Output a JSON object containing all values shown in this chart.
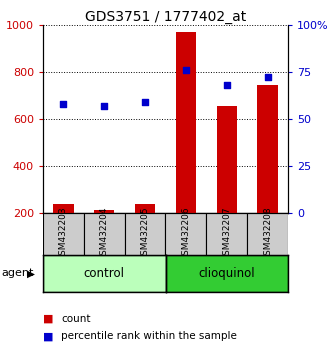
{
  "title": "GDS3751 / 1777402_at",
  "samples": [
    "GSM432203",
    "GSM432204",
    "GSM432205",
    "GSM432206",
    "GSM432207",
    "GSM432208"
  ],
  "groups": [
    "control",
    "control",
    "control",
    "clioquinol",
    "clioquinol",
    "clioquinol"
  ],
  "count_values": [
    240,
    215,
    240,
    970,
    655,
    745
  ],
  "percentile_values": [
    58,
    57,
    59,
    76,
    68,
    72
  ],
  "left_ylim": [
    200,
    1000
  ],
  "right_ylim": [
    0,
    100
  ],
  "left_yticks": [
    200,
    400,
    600,
    800,
    1000
  ],
  "right_yticks": [
    0,
    25,
    50,
    75,
    100
  ],
  "right_yticklabels": [
    "0",
    "25",
    "50",
    "75",
    "100%"
  ],
  "bar_color": "#cc0000",
  "dot_color": "#0000cc",
  "control_color": "#bbffbb",
  "clioquinol_color": "#33cc33",
  "sample_box_color": "#cccccc",
  "title_fontsize": 10,
  "tick_fontsize": 8,
  "label_color_left": "#cc0000",
  "label_color_right": "#0000cc",
  "bar_width": 0.5
}
